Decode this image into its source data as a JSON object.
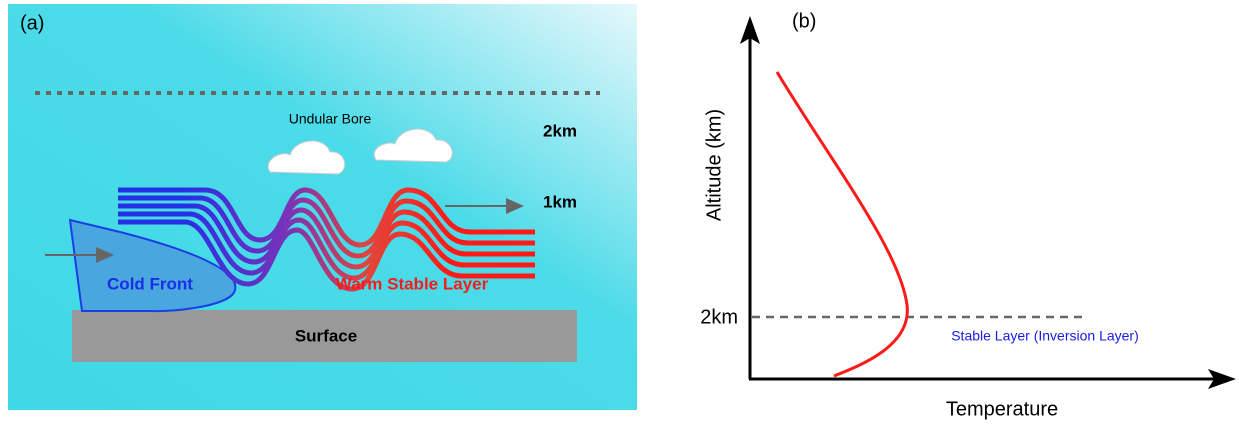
{
  "panel_a": {
    "label": "(a)",
    "title": "Undular Bore",
    "levels": [
      "2km",
      "1km"
    ],
    "cold_front": "Cold Front",
    "warm_layer": "Warm Stable Layer",
    "surface": "Surface"
  },
  "panel_b": {
    "label": "(b)",
    "y_axis": "Altitude (km)",
    "x_axis": "Temperature",
    "marker": "2km",
    "annotation": "Stable Layer (Inversion Layer)"
  }
}
